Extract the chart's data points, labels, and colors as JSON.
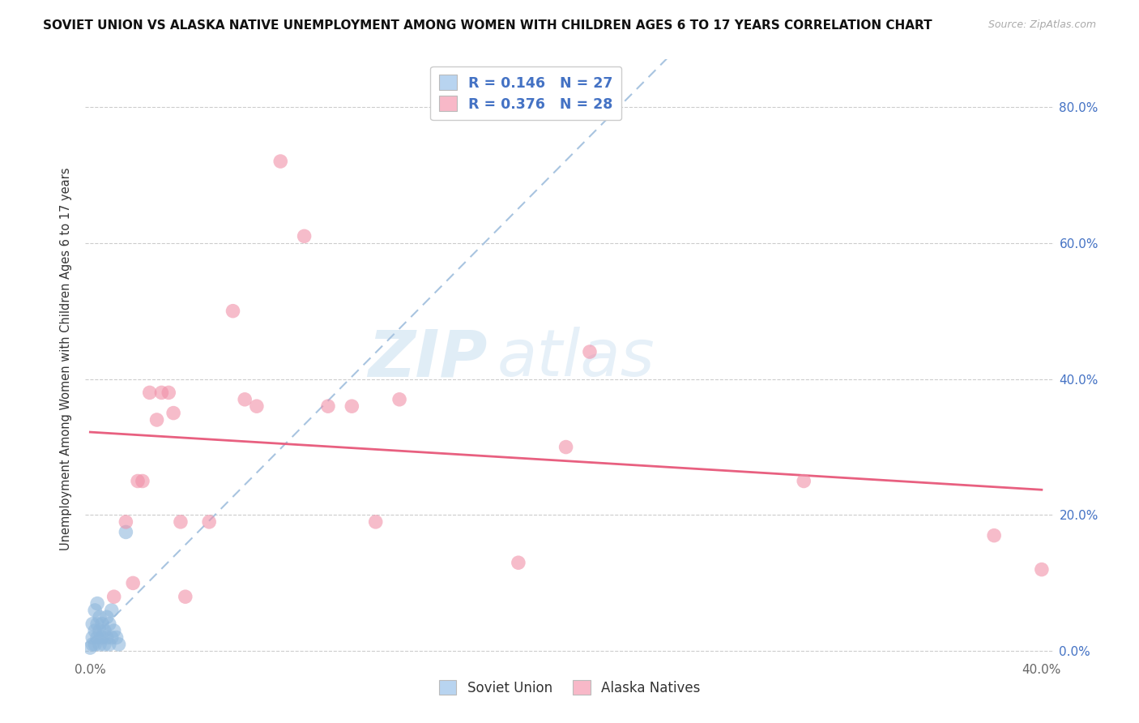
{
  "title": "SOVIET UNION VS ALASKA NATIVE UNEMPLOYMENT AMONG WOMEN WITH CHILDREN AGES 6 TO 17 YEARS CORRELATION CHART",
  "source": "Source: ZipAtlas.com",
  "ylabel": "Unemployment Among Women with Children Ages 6 to 17 years",
  "xlim": [
    -0.002,
    0.405
  ],
  "ylim": [
    -0.01,
    0.87
  ],
  "xticks": [
    0.0,
    0.05,
    0.1,
    0.15,
    0.2,
    0.25,
    0.3,
    0.35,
    0.4
  ],
  "xtick_labels": [
    "0.0%",
    "",
    "",
    "",
    "",
    "",
    "",
    "",
    "40.0%"
  ],
  "yticks": [
    0.0,
    0.2,
    0.4,
    0.6,
    0.8
  ],
  "ytick_labels": [
    "0.0%",
    "20.0%",
    "40.0%",
    "60.0%",
    "80.0%"
  ],
  "soviet_scatter_color": "#90b8dc",
  "alaska_scatter_color": "#f090a8",
  "soviet_legend_color": "#b8d4f0",
  "alaska_legend_color": "#f8b8c8",
  "trendline_soviet_color": "#a8c4e0",
  "trendline_alaska_color": "#e86080",
  "tick_color": "#4472c4",
  "legend_text_color": "#4472c4",
  "legend_r_soviet": "R = 0.146",
  "legend_n_soviet": "N = 27",
  "legend_r_alaska": "R = 0.376",
  "legend_n_alaska": "N = 28",
  "legend_label_soviet": "Soviet Union",
  "legend_label_alaska": "Alaska Natives",
  "soviet_x": [
    0.0,
    0.001,
    0.001,
    0.001,
    0.002,
    0.002,
    0.002,
    0.003,
    0.003,
    0.003,
    0.004,
    0.004,
    0.004,
    0.005,
    0.005,
    0.006,
    0.006,
    0.007,
    0.007,
    0.008,
    0.008,
    0.009,
    0.009,
    0.01,
    0.011,
    0.012,
    0.015
  ],
  "soviet_y": [
    0.005,
    0.01,
    0.02,
    0.04,
    0.01,
    0.03,
    0.06,
    0.02,
    0.04,
    0.07,
    0.01,
    0.03,
    0.05,
    0.02,
    0.04,
    0.01,
    0.03,
    0.02,
    0.05,
    0.01,
    0.04,
    0.02,
    0.06,
    0.03,
    0.02,
    0.01,
    0.175
  ],
  "alaska_x": [
    0.01,
    0.015,
    0.018,
    0.02,
    0.022,
    0.025,
    0.028,
    0.03,
    0.033,
    0.035,
    0.038,
    0.04,
    0.05,
    0.06,
    0.065,
    0.07,
    0.08,
    0.09,
    0.1,
    0.11,
    0.12,
    0.13,
    0.18,
    0.2,
    0.21,
    0.3,
    0.38,
    0.4
  ],
  "alaska_y": [
    0.08,
    0.19,
    0.1,
    0.25,
    0.25,
    0.38,
    0.34,
    0.38,
    0.38,
    0.35,
    0.19,
    0.08,
    0.19,
    0.5,
    0.37,
    0.36,
    0.72,
    0.61,
    0.36,
    0.36,
    0.19,
    0.37,
    0.13,
    0.3,
    0.44,
    0.25,
    0.17,
    0.12
  ]
}
